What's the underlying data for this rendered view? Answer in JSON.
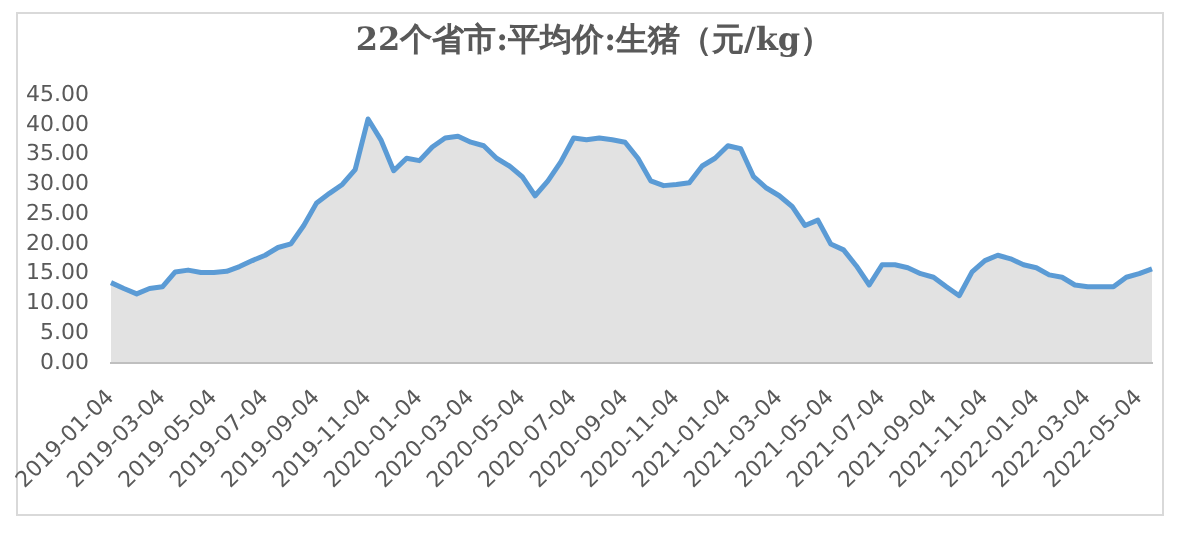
{
  "chart_data": {
    "type": "area",
    "title": "22个省市:平均价:生猪（元/kg）",
    "categories": [
      "2019-01-04",
      null,
      null,
      null,
      "2019-03-04",
      null,
      null,
      null,
      "2019-05-04",
      null,
      null,
      null,
      "2019-07-04",
      null,
      null,
      null,
      "2019-09-04",
      null,
      null,
      null,
      "2019-11-04",
      null,
      null,
      null,
      "2020-01-04",
      null,
      null,
      null,
      "2020-03-04",
      null,
      null,
      null,
      "2020-05-04",
      null,
      null,
      null,
      "2020-07-04",
      null,
      null,
      null,
      "2020-09-04",
      null,
      null,
      null,
      "2020-11-04",
      null,
      null,
      null,
      "2021-01-04",
      null,
      null,
      null,
      "2021-03-04",
      null,
      null,
      null,
      "2021-05-04",
      null,
      null,
      null,
      "2021-07-04",
      null,
      null,
      null,
      "2021-09-04",
      null,
      null,
      null,
      "2021-11-04",
      null,
      null,
      null,
      "2022-01-04",
      null,
      null,
      null,
      "2022-03-04",
      null,
      null,
      null,
      "2022-05-04",
      null
    ],
    "series": [
      {
        "color": "#5b9bd5",
        "values": [
          13.5,
          12.5,
          11.6,
          12.5,
          12.8,
          15.3,
          15.6,
          15.2,
          15.2,
          15.4,
          16.2,
          17.2,
          18.1,
          19.4,
          20,
          23.1,
          26.9,
          28.5,
          30,
          32.5,
          41,
          37.5,
          32.3,
          34.4,
          34,
          36.3,
          37.8,
          38.1,
          37.1,
          36.5,
          34.4,
          33.1,
          31.3,
          28.1,
          30.6,
          33.8,
          37.8,
          37.5,
          37.8,
          37.5,
          37.1,
          34.4,
          30.6,
          29.8,
          30,
          30.3,
          33.1,
          34.4,
          36.5,
          36,
          31.3,
          29.4,
          28.1,
          26.3,
          23.1,
          24,
          20,
          19,
          16.3,
          13.1,
          16.5,
          16.5,
          16,
          15,
          14.4,
          12.8,
          11.3,
          15.3,
          17.2,
          18.1,
          17.5,
          16.5,
          16,
          14.8,
          14.4,
          13.1,
          12.8,
          12.8,
          12.8,
          14.4,
          15,
          15.8
        ]
      }
    ],
    "ylim": [
      0,
      45
    ],
    "yticks": [
      {
        "value": 0,
        "label": "0.00"
      },
      {
        "value": 5,
        "label": "5.00"
      },
      {
        "value": 10,
        "label": "10.00"
      },
      {
        "value": 15,
        "label": "15.00"
      },
      {
        "value": 20,
        "label": "20.00"
      },
      {
        "value": 25,
        "label": "25.00"
      },
      {
        "value": 30,
        "label": "30.00"
      },
      {
        "value": 35,
        "label": "35.00"
      },
      {
        "value": 40,
        "label": "40.00"
      },
      {
        "value": 45,
        "label": "45.00"
      }
    ],
    "grid": false,
    "legend": false,
    "marker": "none"
  }
}
